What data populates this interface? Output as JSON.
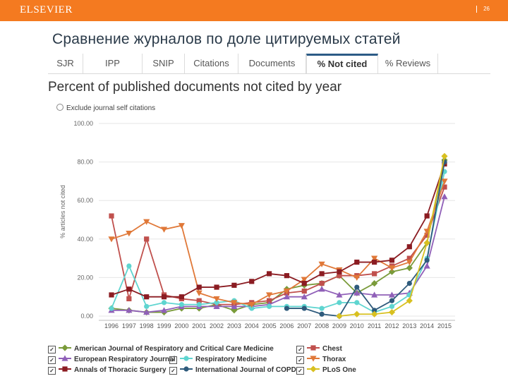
{
  "header": {
    "brand": "ELSEVIER",
    "page_number": "26",
    "bar_color": "#f47a20"
  },
  "slide_title": "Сравнение журналов по доле цитируемых статей",
  "tabs": [
    {
      "label": "SJR",
      "active": false
    },
    {
      "label": "IPP",
      "active": false
    },
    {
      "label": "SNIP",
      "active": false
    },
    {
      "label": "Citations",
      "active": false
    },
    {
      "label": "Documents",
      "active": false
    },
    {
      "label": "% Not cited",
      "active": true
    },
    {
      "label": "% Reviews",
      "active": false
    }
  ],
  "chart_heading": "Percent of published documents not cited by year",
  "exclude_option": "Exclude journal self citations",
  "chart_data": {
    "type": "line",
    "title": "Percent of published documents not cited by year",
    "ylabel": "% articles not cited",
    "xlabel": "",
    "ylim": [
      0,
      100
    ],
    "yticks": [
      "0.00",
      "20.00",
      "40.00",
      "60.00",
      "80.00",
      "100.00"
    ],
    "grid": true,
    "legend_position": "bottom",
    "categories": [
      "1996",
      "1997",
      "1998",
      "1999",
      "2000",
      "2001",
      "2002",
      "2003",
      "2004",
      "2005",
      "2006",
      "2007",
      "2008",
      "2009",
      "2010",
      "2011",
      "2012",
      "2013",
      "2014",
      "2015"
    ],
    "series": [
      {
        "name": "American Journal of Respiratory and Critical Care Medicine",
        "color": "#7a9b3a",
        "marker": "diamond",
        "values": [
          4,
          3,
          2,
          2,
          4,
          4,
          6,
          3,
          6,
          7,
          14,
          16,
          17,
          21,
          12,
          17,
          23,
          25,
          38,
          81
        ]
      },
      {
        "name": "Chest",
        "color": "#c0504d",
        "marker": "square",
        "values": [
          52,
          9,
          40,
          11,
          9,
          8,
          6,
          6,
          7,
          8,
          12,
          13,
          17,
          21,
          21,
          22,
          26,
          30,
          42,
          67
        ]
      },
      {
        "name": "European Respiratory Journal",
        "color": "#9060b8",
        "marker": "triangle",
        "values": [
          3,
          3,
          2,
          3,
          5,
          5,
          5,
          5,
          5,
          6,
          10,
          10,
          14,
          11,
          12,
          11,
          11,
          12,
          26,
          62
        ]
      },
      {
        "name": "Respiratory Medicine",
        "color": "#5fd5d0",
        "marker": "circle",
        "values": [
          4,
          26,
          5,
          7,
          6,
          6,
          7,
          8,
          4,
          5,
          5,
          5,
          4,
          7,
          7,
          2,
          5,
          11,
          30,
          75
        ]
      },
      {
        "name": "Thorax",
        "color": "#e07838",
        "marker": "triangle-down",
        "values": [
          40,
          43,
          49,
          45,
          47,
          12,
          9,
          7,
          6,
          11,
          13,
          19,
          27,
          24,
          20,
          30,
          25,
          28,
          44,
          70
        ]
      },
      {
        "name": "Annals of Thoracic Surgery",
        "color": "#8b1c22",
        "marker": "square",
        "values": [
          11,
          14,
          10,
          10,
          10,
          15,
          15,
          16,
          18,
          22,
          21,
          17,
          22,
          23,
          28,
          28,
          29,
          36,
          52,
          79
        ]
      },
      {
        "name": "International Journal of COPD",
        "color": "#2f5b7c",
        "marker": "circle",
        "values": [
          null,
          null,
          null,
          null,
          null,
          null,
          null,
          null,
          null,
          null,
          4,
          4,
          1,
          0,
          15,
          3,
          8,
          17,
          29,
          80
        ]
      },
      {
        "name": "PLoS One",
        "color": "#d8c020",
        "marker": "diamond",
        "values": [
          null,
          null,
          null,
          null,
          null,
          null,
          null,
          null,
          null,
          null,
          null,
          null,
          null,
          0,
          1,
          1,
          2,
          8,
          38,
          83
        ]
      }
    ]
  },
  "legend": [
    {
      "label": "American Journal of Respiratory and Critical Care Medicine",
      "series": 0,
      "checked": "☑"
    },
    {
      "label": "Chest",
      "series": 1,
      "checked": "☑"
    },
    {
      "label": "European Respiratory Journal",
      "series": 2,
      "checked": "☑"
    },
    {
      "label": "Respiratory Medicine",
      "series": 3,
      "checked": "☑"
    },
    {
      "label": "Thorax",
      "series": 4,
      "checked": "☑"
    },
    {
      "label": "Annals of Thoracic Surgery",
      "series": 5,
      "checked": "☑"
    },
    {
      "label": "International Journal of COPD",
      "series": 6,
      "checked": "☑"
    },
    {
      "label": "PLoS One",
      "series": 7,
      "checked": "☑"
    }
  ]
}
